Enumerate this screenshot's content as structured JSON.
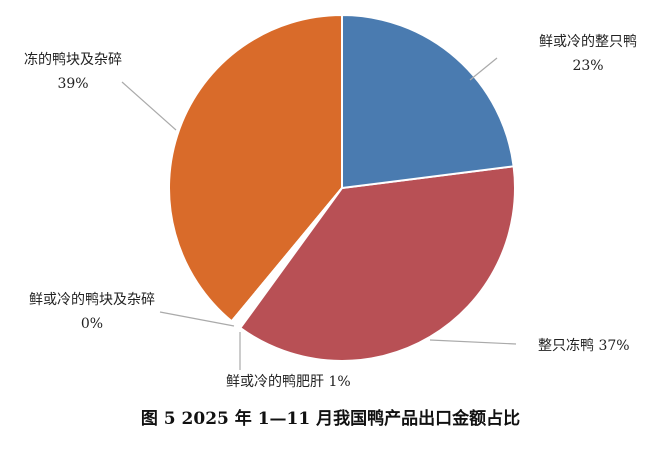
{
  "chart_data": {
    "type": "pie",
    "title": "图 5 2025 年 1—11 月我国鸭产品出口金额占比",
    "categories": [
      "鲜或冷的整只鸭",
      "整只冻鸭",
      "鲜或冷的鸭肥肝",
      "鲜或冷的鸭块及杂碎",
      "冻的鸭块及杂碎"
    ],
    "values": [
      23,
      37,
      1,
      0,
      39
    ],
    "value_labels": [
      "23%",
      "37%",
      "1%",
      "0%",
      "39%"
    ],
    "colors": [
      "#4a7bb0",
      "#b85055",
      "#ffffff",
      "#ffffff",
      "#d96b2a"
    ]
  }
}
